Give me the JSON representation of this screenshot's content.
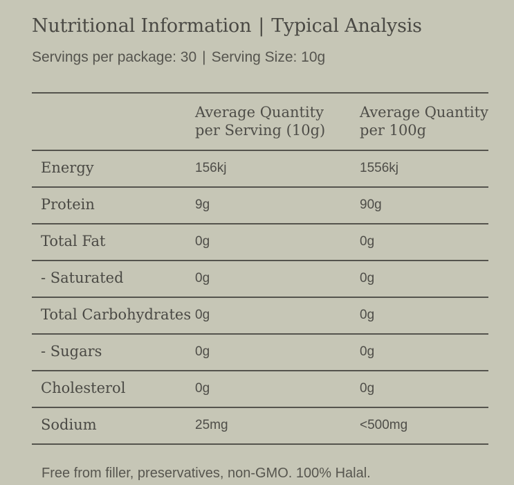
{
  "title": {
    "left": "Nutritional Information",
    "separator": "|",
    "right": "Typical Analysis"
  },
  "subtitle": {
    "servings": "Servings per package: 30",
    "separator": "|",
    "serving_size": "Serving Size: 10g"
  },
  "table": {
    "headers": {
      "per_serving_line1": "Average Quantity",
      "per_serving_line2": "per Serving (10g)",
      "per_100g_line1": "Average Quantity",
      "per_100g_line2": "per 100g"
    },
    "rows": [
      {
        "label": "Energy",
        "per_serving": "156kj",
        "per_100g": "1556kj"
      },
      {
        "label": "Protein",
        "per_serving": "9g",
        "per_100g": "90g"
      },
      {
        "label": "Total Fat",
        "per_serving": "0g",
        "per_100g": "0g"
      },
      {
        "label": "- Saturated",
        "per_serving": "0g",
        "per_100g": "0g"
      },
      {
        "label": "Total Carbohydrates",
        "per_serving": "0g",
        "per_100g": "0g"
      },
      {
        "label": "- Sugars",
        "per_serving": "0g",
        "per_100g": "0g"
      },
      {
        "label": "Cholesterol",
        "per_serving": "0g",
        "per_100g": "0g"
      },
      {
        "label": "Sodium",
        "per_serving": "25mg",
        "per_100g": "<500mg"
      }
    ]
  },
  "footnote": "Free from filler, preservatives, non-GMO. 100% Halal."
}
